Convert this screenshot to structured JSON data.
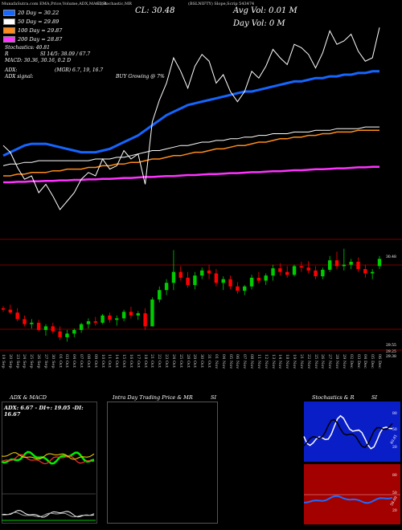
{
  "header": {
    "line1_left": "MunafaSutra.com  EMA,Price,Volume,ADX,MACD,R",
    "line1_mid": "SI,Stochastic,MR",
    "line1_right": "(BSLNIFTY) Slope,Scrip 543474",
    "cl_label": "CL: 30.48",
    "avg_vol": "Avg Vol: 0.01 M",
    "day_vol": "Day Vol: 0   M"
  },
  "legend": [
    {
      "label": "20  Day = 30.22",
      "color": "#1565ff"
    },
    {
      "label": "50  Day = 29.89",
      "color": "#ffffff"
    },
    {
      "label": "100  Day = 29.87",
      "color": "#ff8c1a"
    },
    {
      "label": "200  Day = 28.87",
      "color": "#ff33ff"
    }
  ],
  "info": {
    "stoch": "Stochastics: 40.81",
    "rsi_prefix": "R",
    "rsi": "SI 14/5: 38.09 / 67.7",
    "macd": "MACD: 30.36, 30.16, 0.2  D",
    "adx_label": "ADX:",
    "adx_val": "(MGR) 6.7,  19,  16.7",
    "signal_label": "ADX  signal:",
    "signal_val": "BUY Growing @ 7%"
  },
  "price_labels": {
    "current": "30.48",
    "low1": "29.55",
    "low2": "29.25",
    "low3": "29.38"
  },
  "dates": [
    "19 Sep",
    "20 Sep",
    "23 Sep",
    "24 Sep",
    "25 Sep",
    "26 Sep",
    "27 Sep",
    "30 Sep",
    "01 Oct",
    "03 Oct",
    "04 Oct",
    "07 Oct",
    "08 Oct",
    "09 Oct",
    "10 Oct",
    "11 Oct",
    "14 Oct",
    "15 Oct",
    "16 Oct",
    "17 Oct",
    "18 Oct",
    "21 Oct",
    "22 Oct",
    "23 Oct",
    "24 Oct",
    "25 Oct",
    "28 Oct",
    "29 Oct",
    "30 Oct",
    "31 Oct",
    "01 Nov",
    "04 Nov",
    "05 Nov",
    "06 Nov",
    "07 Nov",
    "08 Nov",
    "11 Nov",
    "12 Nov",
    "13 Nov",
    "14 Nov",
    "18 Nov",
    "19 Nov",
    "21 Nov",
    "22 Nov",
    "25 Nov",
    "26 Nov",
    "27 Nov",
    "28 Nov",
    "29 Nov",
    "02 Dec",
    "03 Dec",
    "04 Dec",
    "05 Dec",
    "06 Dec"
  ],
  "panels": {
    "adx_title": "ADX  & MACD",
    "intra_title": "Intra  Day Trading Price  & MR",
    "intra_si": "SI",
    "stoch_title": "Stochastics & R",
    "stoch_si": "SI",
    "adx_text": "ADX: 6.67 - DI+: 19.05 -DI: 16.67",
    "stoch_ticks": [
      "80",
      "50",
      "20"
    ],
    "stoch_val": "40.81",
    "rsi_ticks": [
      "80",
      "50",
      "20"
    ],
    "rsi_val": "38.09"
  },
  "colors": {
    "ema20": "#1565ff",
    "ema50": "#ffffff",
    "ema100": "#ff8c1a",
    "ema200": "#ff33ff",
    "up": "#00cc00",
    "down": "#ff0000",
    "stoch_bg": "#0a1ec8",
    "rsi_bg": "#a30000"
  },
  "chart_data": {
    "type": "line",
    "x": [
      "19 Sep",
      "20 Sep",
      "23 Sep",
      "24 Sep",
      "25 Sep",
      "26 Sep",
      "27 Sep",
      "30 Sep",
      "01 Oct",
      "03 Oct",
      "04 Oct",
      "07 Oct",
      "08 Oct",
      "09 Oct",
      "10 Oct",
      "11 Oct",
      "14 Oct",
      "15 Oct",
      "16 Oct",
      "17 Oct",
      "18 Oct",
      "21 Oct",
      "22 Oct",
      "23 Oct",
      "24 Oct",
      "25 Oct",
      "28 Oct",
      "29 Oct",
      "30 Oct",
      "31 Oct",
      "01 Nov",
      "04 Nov",
      "05 Nov",
      "06 Nov",
      "07 Nov",
      "08 Nov",
      "11 Nov",
      "12 Nov",
      "13 Nov",
      "14 Nov",
      "18 Nov",
      "19 Nov",
      "21 Nov",
      "22 Nov",
      "25 Nov",
      "26 Nov",
      "27 Nov",
      "28 Nov",
      "29 Nov",
      "02 Dec",
      "03 Dec",
      "04 Dec",
      "05 Dec",
      "06 Dec"
    ],
    "series": [
      {
        "name": "20  Day = 30.22",
        "values": [
          29.72,
          29.74,
          29.76,
          29.78,
          29.79,
          29.79,
          29.79,
          29.78,
          29.77,
          29.76,
          29.75,
          29.74,
          29.74,
          29.74,
          29.75,
          29.76,
          29.78,
          29.8,
          29.82,
          29.84,
          29.87,
          29.9,
          29.93,
          29.96,
          29.98,
          30.0,
          30.02,
          30.03,
          30.04,
          30.05,
          30.06,
          30.07,
          30.08,
          30.09,
          30.1,
          30.1,
          30.11,
          30.12,
          30.13,
          30.14,
          30.15,
          30.16,
          30.16,
          30.17,
          30.18,
          30.18,
          30.19,
          30.19,
          30.2,
          30.2,
          30.21,
          30.21,
          30.22,
          30.22
        ]
      },
      {
        "name": "50  Day = 29.89",
        "values": [
          29.66,
          29.67,
          29.67,
          29.68,
          29.68,
          29.69,
          29.69,
          29.69,
          29.69,
          29.69,
          29.69,
          29.69,
          29.69,
          29.7,
          29.7,
          29.7,
          29.71,
          29.71,
          29.72,
          29.73,
          29.74,
          29.75,
          29.75,
          29.76,
          29.77,
          29.78,
          29.78,
          29.79,
          29.8,
          29.8,
          29.81,
          29.81,
          29.82,
          29.82,
          29.83,
          29.83,
          29.84,
          29.84,
          29.85,
          29.85,
          29.85,
          29.86,
          29.86,
          29.86,
          29.87,
          29.87,
          29.87,
          29.88,
          29.88,
          29.88,
          29.88,
          29.89,
          29.89,
          29.89
        ]
      },
      {
        "name": "100  Day = 29.87",
        "values": [
          29.6,
          29.6,
          29.61,
          29.61,
          29.62,
          29.62,
          29.62,
          29.63,
          29.63,
          29.64,
          29.64,
          29.64,
          29.65,
          29.65,
          29.66,
          29.66,
          29.67,
          29.67,
          29.68,
          29.68,
          29.69,
          29.7,
          29.7,
          29.71,
          29.72,
          29.72,
          29.73,
          29.74,
          29.74,
          29.75,
          29.76,
          29.76,
          29.77,
          29.78,
          29.78,
          29.79,
          29.8,
          29.8,
          29.81,
          29.82,
          29.82,
          29.83,
          29.83,
          29.84,
          29.84,
          29.85,
          29.85,
          29.86,
          29.86,
          29.86,
          29.87,
          29.87,
          29.87,
          29.87
        ]
      },
      {
        "name": "200  Day = 28.87",
        "values": [
          28.55,
          28.55,
          28.56,
          28.56,
          28.57,
          28.57,
          28.58,
          28.58,
          28.59,
          28.59,
          28.6,
          28.6,
          28.61,
          28.61,
          28.62,
          28.62,
          28.63,
          28.64,
          28.64,
          28.65,
          28.66,
          28.66,
          28.67,
          28.68,
          28.68,
          28.69,
          28.7,
          28.7,
          28.71,
          28.72,
          28.72,
          28.73,
          28.74,
          28.74,
          28.75,
          28.76,
          28.76,
          28.77,
          28.78,
          28.78,
          28.79,
          28.8,
          28.8,
          28.81,
          28.82,
          28.82,
          28.83,
          28.84,
          28.84,
          28.85,
          28.86,
          28.86,
          28.87,
          28.87
        ]
      }
    ],
    "candles": [
      {
        "o": 29.8,
        "h": 29.83,
        "l": 29.75,
        "c": 29.78
      },
      {
        "o": 29.78,
        "h": 29.85,
        "l": 29.72,
        "c": 29.74
      },
      {
        "o": 29.74,
        "h": 29.8,
        "l": 29.62,
        "c": 29.65
      },
      {
        "o": 29.65,
        "h": 29.7,
        "l": 29.55,
        "c": 29.58
      },
      {
        "o": 29.58,
        "h": 29.65,
        "l": 29.52,
        "c": 29.6
      },
      {
        "o": 29.6,
        "h": 29.64,
        "l": 29.48,
        "c": 29.5
      },
      {
        "o": 29.5,
        "h": 29.58,
        "l": 29.42,
        "c": 29.55
      },
      {
        "o": 29.55,
        "h": 29.6,
        "l": 29.45,
        "c": 29.48
      },
      {
        "o": 29.48,
        "h": 29.55,
        "l": 29.36,
        "c": 29.4
      },
      {
        "o": 29.4,
        "h": 29.5,
        "l": 29.34,
        "c": 29.45
      },
      {
        "o": 29.45,
        "h": 29.52,
        "l": 29.4,
        "c": 29.5
      },
      {
        "o": 29.5,
        "h": 29.6,
        "l": 29.46,
        "c": 29.58
      },
      {
        "o": 29.58,
        "h": 29.66,
        "l": 29.52,
        "c": 29.62
      },
      {
        "o": 29.62,
        "h": 29.68,
        "l": 29.56,
        "c": 29.6
      },
      {
        "o": 29.6,
        "h": 29.72,
        "l": 29.58,
        "c": 29.7
      },
      {
        "o": 29.7,
        "h": 29.74,
        "l": 29.6,
        "c": 29.64
      },
      {
        "o": 29.64,
        "h": 29.7,
        "l": 29.56,
        "c": 29.66
      },
      {
        "o": 29.66,
        "h": 29.78,
        "l": 29.62,
        "c": 29.75
      },
      {
        "o": 29.75,
        "h": 29.82,
        "l": 29.66,
        "c": 29.7
      },
      {
        "o": 29.7,
        "h": 29.76,
        "l": 29.64,
        "c": 29.73
      },
      {
        "o": 29.73,
        "h": 29.8,
        "l": 29.5,
        "c": 29.55
      },
      {
        "o": 29.55,
        "h": 29.95,
        "l": 29.55,
        "c": 29.92
      },
      {
        "o": 29.92,
        "h": 30.1,
        "l": 29.88,
        "c": 30.05
      },
      {
        "o": 30.05,
        "h": 30.2,
        "l": 29.98,
        "c": 30.15
      },
      {
        "o": 30.15,
        "h": 30.6,
        "l": 30.05,
        "c": 30.3
      },
      {
        "o": 30.3,
        "h": 30.38,
        "l": 30.18,
        "c": 30.22
      },
      {
        "o": 30.22,
        "h": 30.3,
        "l": 30.08,
        "c": 30.12
      },
      {
        "o": 30.12,
        "h": 30.3,
        "l": 30.06,
        "c": 30.25
      },
      {
        "o": 30.25,
        "h": 30.36,
        "l": 30.2,
        "c": 30.32
      },
      {
        "o": 30.32,
        "h": 30.4,
        "l": 30.2,
        "c": 30.28
      },
      {
        "o": 30.28,
        "h": 30.34,
        "l": 30.1,
        "c": 30.15
      },
      {
        "o": 30.15,
        "h": 30.24,
        "l": 30.05,
        "c": 30.2
      },
      {
        "o": 30.2,
        "h": 30.25,
        "l": 30.06,
        "c": 30.1
      },
      {
        "o": 30.1,
        "h": 30.16,
        "l": 30.0,
        "c": 30.04
      },
      {
        "o": 30.04,
        "h": 30.12,
        "l": 29.98,
        "c": 30.1
      },
      {
        "o": 30.1,
        "h": 30.26,
        "l": 30.06,
        "c": 30.22
      },
      {
        "o": 30.22,
        "h": 30.3,
        "l": 30.14,
        "c": 30.18
      },
      {
        "o": 30.18,
        "h": 30.28,
        "l": 30.12,
        "c": 30.25
      },
      {
        "o": 30.25,
        "h": 30.4,
        "l": 30.18,
        "c": 30.35
      },
      {
        "o": 30.35,
        "h": 30.42,
        "l": 30.25,
        "c": 30.3
      },
      {
        "o": 30.3,
        "h": 30.38,
        "l": 30.22,
        "c": 30.26
      },
      {
        "o": 30.26,
        "h": 30.4,
        "l": 30.24,
        "c": 30.38
      },
      {
        "o": 30.38,
        "h": 30.44,
        "l": 30.3,
        "c": 30.36
      },
      {
        "o": 30.36,
        "h": 30.45,
        "l": 30.28,
        "c": 30.32
      },
      {
        "o": 30.32,
        "h": 30.38,
        "l": 30.2,
        "c": 30.24
      },
      {
        "o": 30.24,
        "h": 30.36,
        "l": 30.2,
        "c": 30.33
      },
      {
        "o": 30.33,
        "h": 30.52,
        "l": 30.3,
        "c": 30.46
      },
      {
        "o": 30.46,
        "h": 30.58,
        "l": 30.34,
        "c": 30.38
      },
      {
        "o": 30.38,
        "h": 30.62,
        "l": 30.32,
        "c": 30.4
      },
      {
        "o": 30.4,
        "h": 30.48,
        "l": 30.34,
        "c": 30.44
      },
      {
        "o": 30.44,
        "h": 30.5,
        "l": 30.3,
        "c": 30.34
      },
      {
        "o": 30.34,
        "h": 30.4,
        "l": 30.22,
        "c": 30.28
      },
      {
        "o": 30.28,
        "h": 30.34,
        "l": 30.2,
        "c": 30.3
      },
      {
        "o": 30.38,
        "h": 30.52,
        "l": 30.34,
        "c": 30.48
      }
    ],
    "ylim": [
      29.2,
      30.75
    ]
  }
}
